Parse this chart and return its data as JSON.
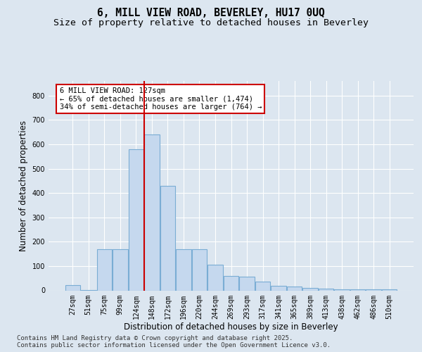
{
  "title1": "6, MILL VIEW ROAD, BEVERLEY, HU17 0UQ",
  "title2": "Size of property relative to detached houses in Beverley",
  "xlabel": "Distribution of detached houses by size in Beverley",
  "ylabel": "Number of detached properties",
  "categories": [
    "27sqm",
    "51sqm",
    "75sqm",
    "99sqm",
    "124sqm",
    "148sqm",
    "172sqm",
    "196sqm",
    "220sqm",
    "244sqm",
    "269sqm",
    "293sqm",
    "317sqm",
    "341sqm",
    "365sqm",
    "389sqm",
    "413sqm",
    "438sqm",
    "462sqm",
    "486sqm",
    "510sqm"
  ],
  "values": [
    22,
    2,
    168,
    168,
    580,
    640,
    430,
    170,
    170,
    105,
    60,
    55,
    35,
    20,
    15,
    10,
    8,
    5,
    5,
    3,
    3
  ],
  "bar_color": "#c5d8ee",
  "bar_edge_color": "#7aadd4",
  "vline_color": "#cc0000",
  "annotation_box_text": "6 MILL VIEW ROAD: 127sqm\n← 65% of detached houses are smaller (1,474)\n34% of semi-detached houses are larger (764) →",
  "annotation_box_color": "#cc0000",
  "annotation_box_bg": "#ffffff",
  "background_color": "#dce6f0",
  "plot_bg_color": "#dce6f0",
  "footer": "Contains HM Land Registry data © Crown copyright and database right 2025.\nContains public sector information licensed under the Open Government Licence v3.0.",
  "ylim": [
    0,
    860
  ],
  "yticks": [
    0,
    100,
    200,
    300,
    400,
    500,
    600,
    700,
    800
  ],
  "title_fontsize": 10.5,
  "subtitle_fontsize": 9.5,
  "label_fontsize": 8.5,
  "tick_fontsize": 7,
  "footer_fontsize": 6.5
}
